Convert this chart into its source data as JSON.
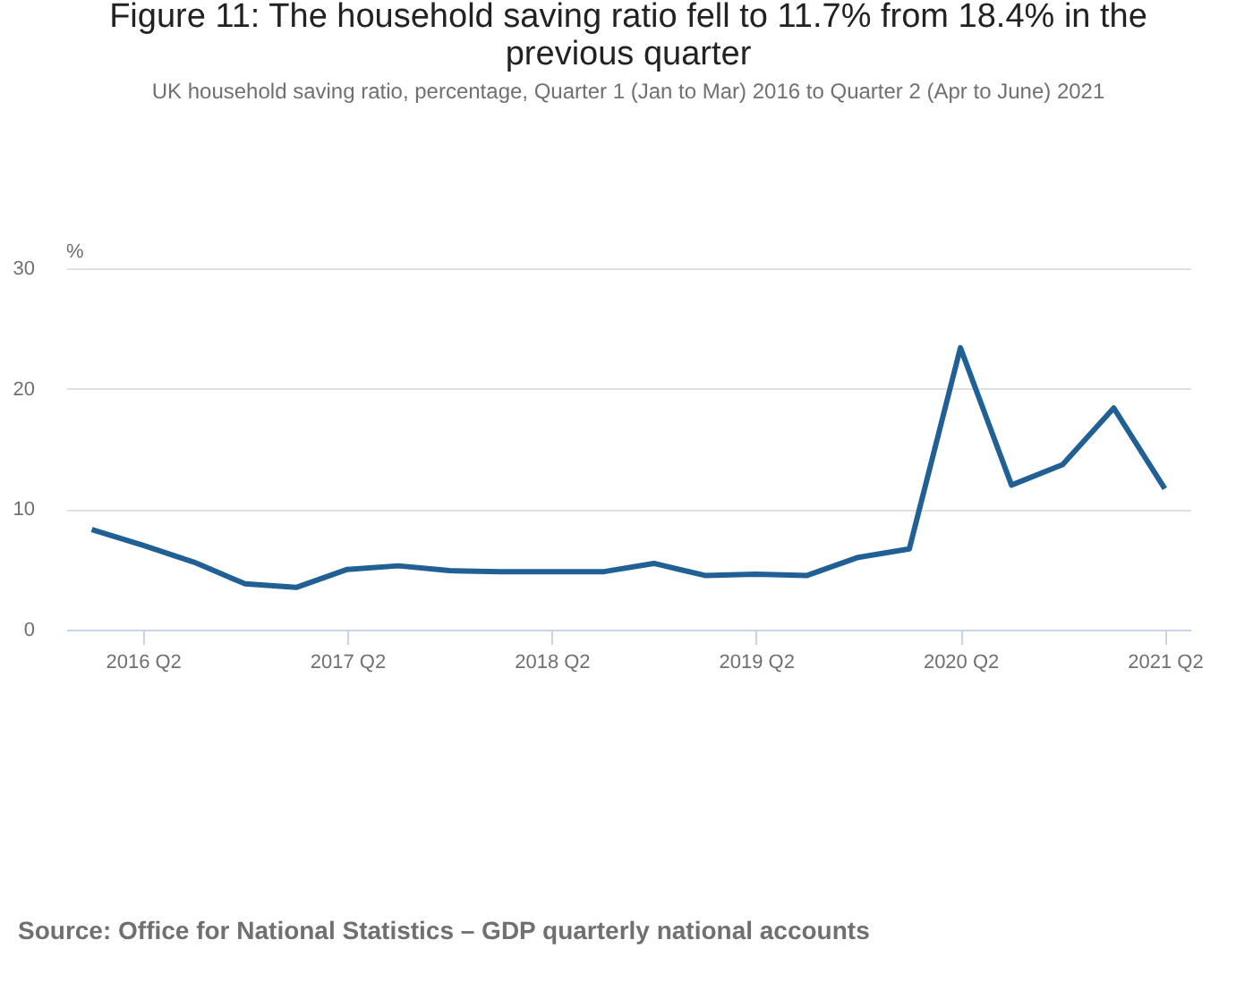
{
  "chart_data": {
    "type": "line",
    "title": "Figure 11: The household saving ratio fell to 11.7% from 18.4% in the previous quarter",
    "subtitle": "UK household saving ratio, percentage, Quarter 1 (Jan to Mar) 2016 to Quarter 2 (Apr to June) 2021",
    "ylabel": "%",
    "categories": [
      null,
      "2016 Q2",
      null,
      null,
      null,
      "2017 Q2",
      null,
      null,
      null,
      "2018 Q2",
      null,
      null,
      null,
      "2019 Q2",
      null,
      null,
      null,
      "2020 Q2",
      null,
      null,
      null,
      "2021 Q2"
    ],
    "series": [
      {
        "color": "#206095",
        "values": [
          8.3,
          7.0,
          5.6,
          3.8,
          3.5,
          5.0,
          5.3,
          4.9,
          4.8,
          4.8,
          4.8,
          5.5,
          4.5,
          4.6,
          4.5,
          6.0,
          6.7,
          23.4,
          12.0,
          13.7,
          18.4,
          11.7
        ]
      }
    ],
    "ylim": [
      0,
      30
    ],
    "yticks": [
      0,
      10,
      20,
      30
    ],
    "grid": "y",
    "legend": false,
    "marker": "none",
    "line_style": "solid",
    "annotations": [
      "Source: Office for National Statistics – GDP quarterly national accounts"
    ]
  }
}
